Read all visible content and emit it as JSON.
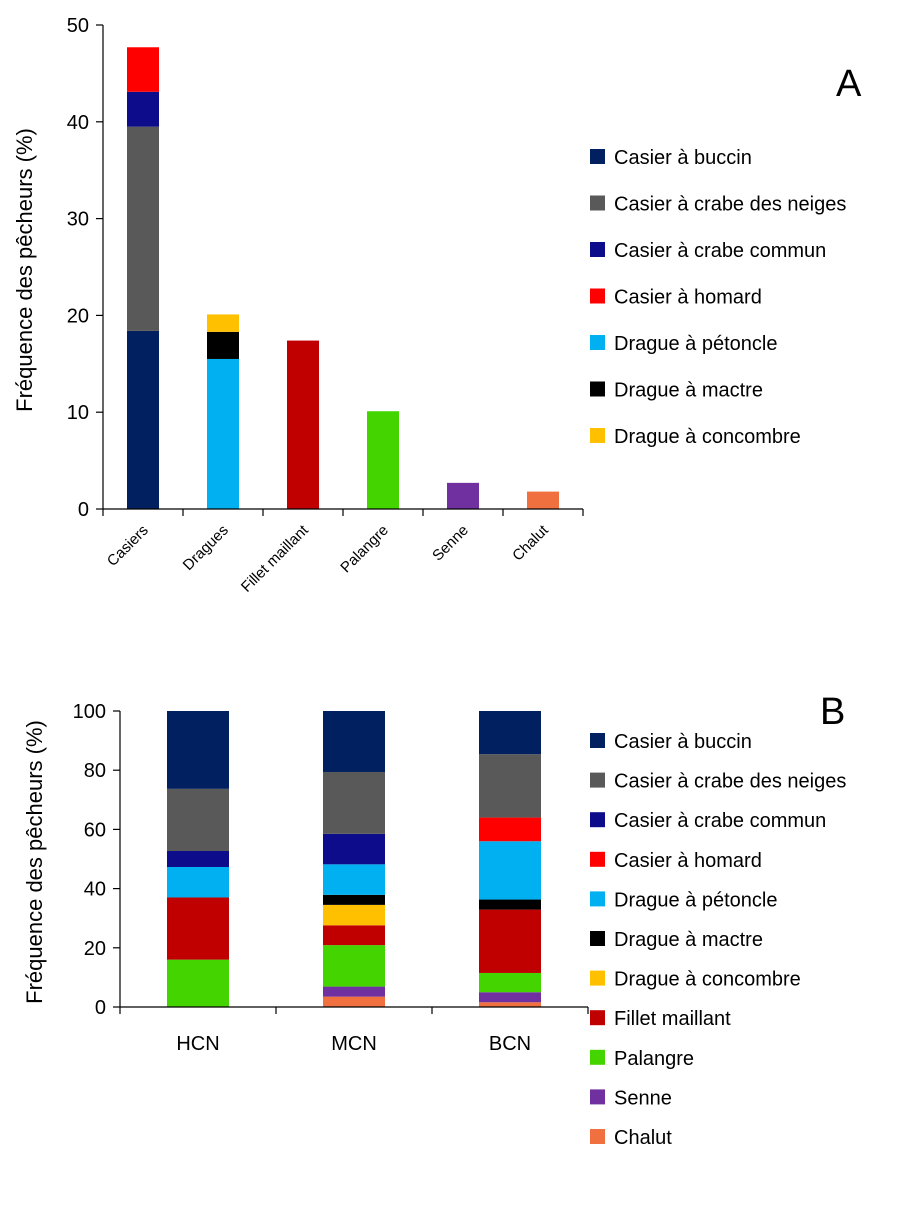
{
  "chart_data": [
    {
      "type": "bar",
      "stacked": true,
      "panel_label": "A",
      "ylabel": "Fréquence des pêcheurs (%)",
      "xlabel": "",
      "ylim": [
        0,
        50
      ],
      "yticks": [
        0,
        10,
        20,
        30,
        40,
        50
      ],
      "grid": false,
      "legend_position": "right",
      "categories": [
        "Casiers",
        "Dragues",
        "Fillet maillant",
        "Palangre",
        "Senne",
        "Chalut"
      ],
      "series": [
        {
          "name": "Casier à buccin",
          "color": "#002060",
          "values": [
            18.4,
            0,
            0,
            0,
            0,
            0
          ]
        },
        {
          "name": "Casier à crabe des neiges",
          "color": "#595959",
          "values": [
            21.1,
            0,
            0,
            0,
            0,
            0
          ]
        },
        {
          "name": "Casier à crabe commun",
          "color": "#0d0d8c",
          "values": [
            3.6,
            0,
            0,
            0,
            0,
            0
          ]
        },
        {
          "name": "Casier à homard",
          "color": "#ff0000",
          "values": [
            4.6,
            0,
            0,
            0,
            0,
            0
          ]
        },
        {
          "name": "Drague à pétoncle",
          "color": "#00b0f0",
          "values": [
            0,
            15.5,
            0,
            0,
            0,
            0
          ]
        },
        {
          "name": "Drague à mactre",
          "color": "#000000",
          "values": [
            0,
            2.8,
            0,
            0,
            0,
            0
          ]
        },
        {
          "name": "Drague à concombre",
          "color": "#ffc000",
          "values": [
            0,
            1.8,
            0,
            0,
            0,
            0
          ]
        },
        {
          "name": "Fillet maillant",
          "color": "#c00000",
          "values": [
            0,
            0,
            17.4,
            0,
            0,
            0
          ]
        },
        {
          "name": "Palangre",
          "color": "#44d400",
          "values": [
            0,
            0,
            0,
            10.1,
            0,
            0
          ]
        },
        {
          "name": "Senne",
          "color": "#7030a0",
          "values": [
            0,
            0,
            0,
            0,
            2.7,
            0
          ]
        },
        {
          "name": "Chalut",
          "color": "#f07040",
          "values": [
            0,
            0,
            0,
            0,
            0,
            1.8
          ]
        }
      ],
      "legend_entries": [
        "Casier à buccin",
        "Casier à crabe des neiges",
        "Casier à crabe commun",
        "Casier à homard",
        "Drague à pétoncle",
        "Drague à mactre",
        "Drague à concombre"
      ]
    },
    {
      "type": "bar",
      "stacked": true,
      "panel_label": "B",
      "ylabel": "Fréquence des pêcheurs (%)",
      "xlabel": "",
      "ylim": [
        0,
        100
      ],
      "yticks": [
        0,
        20,
        40,
        60,
        80,
        100
      ],
      "grid": false,
      "legend_position": "right",
      "categories": [
        "HCN",
        "MCN",
        "BCN"
      ],
      "series": [
        {
          "name": "Chalut",
          "color": "#f07040",
          "values": [
            0,
            3.5,
            1.6
          ]
        },
        {
          "name": "Senne",
          "color": "#7030a0",
          "values": [
            0,
            3.4,
            3.4
          ]
        },
        {
          "name": "Palangre",
          "color": "#44d400",
          "values": [
            16.0,
            14.0,
            6.5
          ]
        },
        {
          "name": "Fillet maillant",
          "color": "#c00000",
          "values": [
            21.0,
            6.7,
            21.4
          ]
        },
        {
          "name": "Drague à concombre",
          "color": "#ffc000",
          "values": [
            0,
            6.9,
            0
          ]
        },
        {
          "name": "Drague à mactre",
          "color": "#000000",
          "values": [
            0,
            3.4,
            3.4
          ]
        },
        {
          "name": "Drague à pétoncle",
          "color": "#00b0f0",
          "values": [
            10.3,
            10.3,
            19.7
          ]
        },
        {
          "name": "Casier à homard",
          "color": "#ff0000",
          "values": [
            0,
            0,
            8.0
          ]
        },
        {
          "name": "Casier à crabe commun",
          "color": "#0d0d8c",
          "values": [
            5.4,
            10.3,
            0
          ]
        },
        {
          "name": "Casier à crabe des neiges",
          "color": "#595959",
          "values": [
            21.0,
            20.9,
            21.4
          ]
        },
        {
          "name": "Casier à buccin",
          "color": "#002060",
          "values": [
            26.3,
            20.6,
            14.6
          ]
        }
      ],
      "legend_entries": [
        "Casier à buccin",
        "Casier à crabe des neiges",
        "Casier à crabe commun",
        "Casier à homard",
        "Drague à pétoncle",
        "Drague à mactre",
        "Drague à concombre",
        "Fillet maillant",
        "Palangre",
        "Senne",
        "Chalut"
      ]
    }
  ]
}
